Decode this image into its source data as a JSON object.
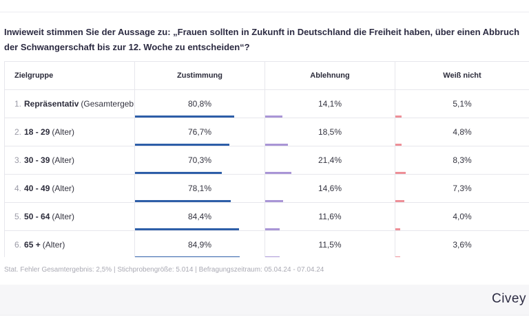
{
  "question": "Inwieweit stimmen Sie der Aussage zu: „Frauen sollten in Zukunft in Deutschland die Freiheit haben, über einen Abbruch der Schwangerschaft bis zur 12. Woche zu entscheiden“?",
  "colors": {
    "zustimmung": "#2d5ea8",
    "ablehnung": "#a995d6",
    "weiss_nicht": "#ee8f97"
  },
  "chart_data": {
    "type": "table",
    "columns": [
      "Zielgruppe",
      "Zustimmung",
      "Ablehnung",
      "Weiß nicht"
    ],
    "rows": [
      {
        "num": "1.",
        "group": "Repräsentativ",
        "sub": "(Gesamtergebnis)",
        "values": [
          "80,8%",
          "14,1%",
          "5,1%"
        ],
        "fractions": [
          0.808,
          0.141,
          0.051
        ]
      },
      {
        "num": "2.",
        "group": "18 - 29",
        "sub": "(Alter)",
        "values": [
          "76,7%",
          "18,5%",
          "4,8%"
        ],
        "fractions": [
          0.767,
          0.185,
          0.048
        ]
      },
      {
        "num": "3.",
        "group": "30 - 39",
        "sub": "(Alter)",
        "values": [
          "70,3%",
          "21,4%",
          "8,3%"
        ],
        "fractions": [
          0.703,
          0.214,
          0.083
        ]
      },
      {
        "num": "4.",
        "group": "40 - 49",
        "sub": "(Alter)",
        "values": [
          "78,1%",
          "14,6%",
          "7,3%"
        ],
        "fractions": [
          0.781,
          0.146,
          0.073
        ]
      },
      {
        "num": "5.",
        "group": "50 - 64",
        "sub": "(Alter)",
        "values": [
          "84,4%",
          "11,6%",
          "4,0%"
        ],
        "fractions": [
          0.844,
          0.116,
          0.04
        ]
      },
      {
        "num": "6.",
        "group": "65 +",
        "sub": "(Alter)",
        "values": [
          "84,9%",
          "11,5%",
          "3,6%"
        ],
        "fractions": [
          0.849,
          0.115,
          0.036
        ]
      }
    ]
  },
  "footnote": "Stat. Fehler Gesamtergebnis: 2,5% | Stichprobengröße: 5.014 | Befragungszeitraum: 05.04.24 - 07.04.24",
  "brand": "Civey"
}
